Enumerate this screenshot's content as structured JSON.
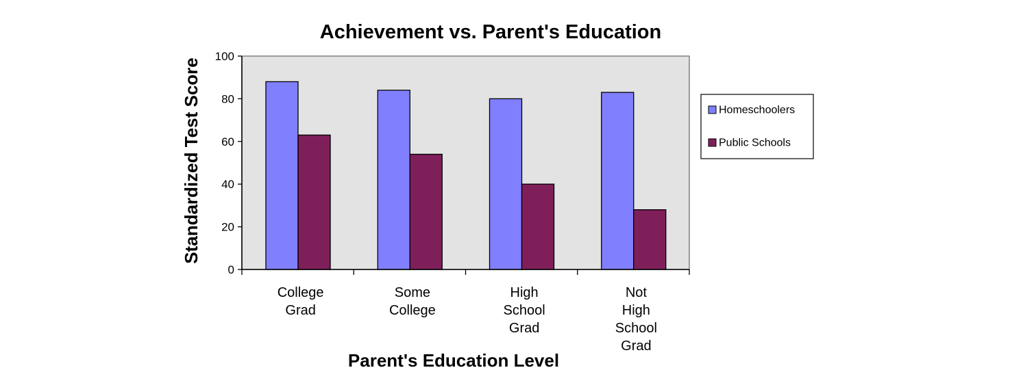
{
  "chart_data": {
    "type": "bar",
    "title": "Achievement vs. Parent's Education",
    "xlabel": "Parent's Education Level",
    "ylabel": "Standardized Test Score",
    "categories": [
      [
        "College",
        "Grad"
      ],
      [
        "Some",
        "College"
      ],
      [
        "High",
        "School",
        "Grad"
      ],
      [
        "Not",
        "High",
        "School",
        "Grad"
      ]
    ],
    "series": [
      {
        "name": "Homeschoolers",
        "color": "#8080ff",
        "values": [
          88,
          84,
          80,
          83
        ]
      },
      {
        "name": "Public Schools",
        "color": "#7f1f5a",
        "values": [
          63,
          54,
          40,
          28
        ]
      }
    ],
    "ylim": [
      0,
      100
    ],
    "yticks": [
      0,
      20,
      40,
      60,
      80,
      100
    ],
    "plot_background": "#e3e3e3",
    "grid": false,
    "legend_position": "right"
  }
}
